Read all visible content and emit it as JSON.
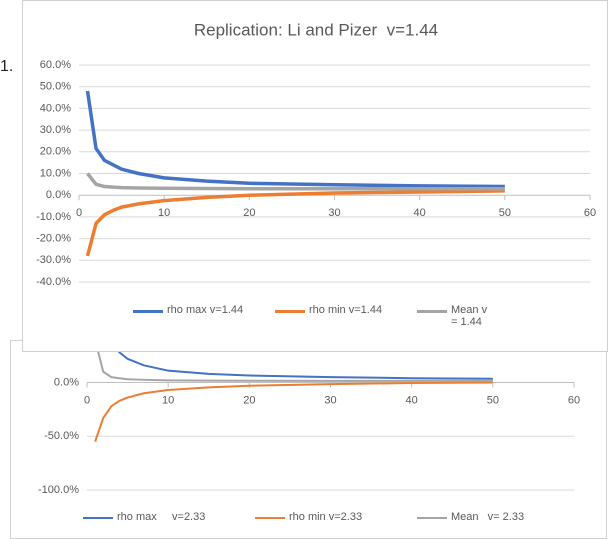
{
  "page_text": "1.",
  "chart_data": [
    {
      "type": "line",
      "title": "Replication: Li and Pizer  v=1.44",
      "x": [
        1,
        2,
        3,
        4,
        5,
        7,
        10,
        15,
        20,
        30,
        40,
        50
      ],
      "series": [
        {
          "name": "rho max v=1.44",
          "color": "#4472c4",
          "values": [
            48,
            21.5,
            16,
            14,
            12,
            10,
            8,
            6.5,
            5.5,
            4.8,
            4.3,
            4.0
          ]
        },
        {
          "name": "rho min v=1.44",
          "color": "#ed7d31",
          "values": [
            -28,
            -13,
            -9,
            -7,
            -5.5,
            -4,
            -2.5,
            -1,
            0,
            1,
            1.5,
            2
          ]
        },
        {
          "name": "Mean v = 1.44",
          "color": "#a5a5a5",
          "values": [
            10,
            5,
            4,
            3.7,
            3.5,
            3.3,
            3.2,
            3.1,
            3,
            3,
            3,
            3
          ]
        }
      ],
      "xlim": [
        0,
        60
      ],
      "xticks": [
        0,
        10,
        20,
        30,
        40,
        50,
        60
      ],
      "ylim": [
        -40,
        60
      ],
      "yticks": [
        {
          "value": -40,
          "label": "-40.0%"
        },
        {
          "value": -30,
          "label": "-30.0%"
        },
        {
          "value": -20,
          "label": "-20.0%"
        },
        {
          "value": -10,
          "label": "-10.0%"
        },
        {
          "value": 0,
          "label": "0.0%"
        },
        {
          "value": 10,
          "label": "10.0%"
        },
        {
          "value": 20,
          "label": "20.0%"
        },
        {
          "value": 30,
          "label": "30.0%"
        },
        {
          "value": 40,
          "label": "40.0%"
        },
        {
          "value": 50,
          "label": "50.0%"
        },
        {
          "value": 60,
          "label": "60.0%"
        }
      ],
      "grid": true,
      "legend": "bottom"
    },
    {
      "type": "line",
      "x": [
        1,
        2,
        3,
        4,
        5,
        7,
        10,
        15,
        20,
        30,
        40,
        50
      ],
      "series": [
        {
          "name": "rho max     v=2.33",
          "color": "#4472c4",
          "values": [
            100,
            55,
            38,
            28,
            22,
            16,
            11,
            8,
            6.5,
            5,
            4,
            3.5
          ]
        },
        {
          "name": "rho min v=2.33",
          "color": "#ed7d31",
          "values": [
            -55,
            -33,
            -22,
            -17,
            -14,
            -10,
            -7,
            -4.5,
            -3,
            -1.5,
            -0.5,
            0
          ]
        },
        {
          "name": "Mean   v= 2.33",
          "color": "#a5a5a5",
          "values": [
            40,
            10,
            5,
            4,
            3,
            2.5,
            2,
            1.8,
            1.6,
            1.5,
            1.5,
            1.5
          ]
        }
      ],
      "xlim": [
        0,
        60
      ],
      "xticks": [
        0,
        10,
        20,
        30,
        40,
        50,
        60
      ],
      "ylim": [
        -100,
        100
      ],
      "yticks": [
        {
          "value": -100,
          "label": "-100.0%"
        },
        {
          "value": -50,
          "label": "-50.0%"
        },
        {
          "value": 0,
          "label": "0.0%"
        }
      ],
      "grid": true,
      "legend": "bottom"
    }
  ]
}
